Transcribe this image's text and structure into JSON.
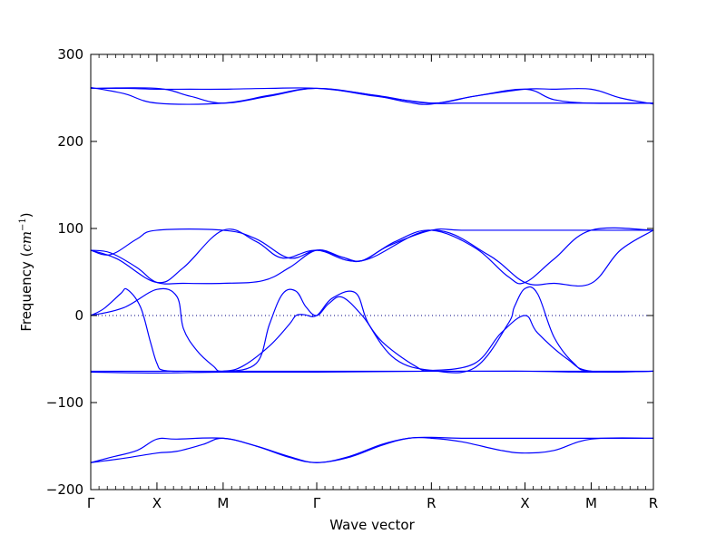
{
  "chart_data": {
    "type": "line",
    "xlabel": "Wave vector",
    "ylabel": "Frequency ($cm^{-1}$)",
    "ylabel_parts": {
      "text": "Frequency (",
      "math_base": "cm",
      "math_sup": "−1",
      "close": ")"
    },
    "ylim": [
      -200,
      300
    ],
    "yticks": [
      -200,
      -100,
      0,
      100,
      200,
      300
    ],
    "ytick_labels": [
      "−200",
      "−100",
      "0",
      "100",
      "200",
      "300"
    ],
    "xlim": [
      0,
      8.5
    ],
    "high_symmetry_points": [
      {
        "label": "Γ",
        "x": 0
      },
      {
        "label": "X",
        "x": 1
      },
      {
        "label": "M",
        "x": 2
      },
      {
        "label": "Γ",
        "x": 3.414
      },
      {
        "label": "R",
        "x": 5.146
      },
      {
        "label": "X",
        "x": 6.56
      },
      {
        "label": "M",
        "x": 7.56
      },
      {
        "label": "R",
        "x": 8.5
      }
    ],
    "zero_line": true,
    "line_color": "#0000ff",
    "zero_line_color": "#000080",
    "series": [
      {
        "values": [
          [
            0,
            -169
          ],
          [
            0.3,
            -163
          ],
          [
            0.7,
            -155
          ],
          [
            1,
            -142
          ],
          [
            1.3,
            -142
          ],
          [
            2,
            -141
          ],
          [
            2.5,
            -150
          ],
          [
            3,
            -162
          ],
          [
            3.414,
            -169
          ],
          [
            3.9,
            -162
          ],
          [
            4.4,
            -148
          ],
          [
            4.8,
            -141
          ],
          [
            5.146,
            -140
          ],
          [
            5.6,
            -141
          ],
          [
            6.56,
            -141
          ],
          [
            7.56,
            -141
          ],
          [
            8.5,
            -141
          ]
        ]
      },
      {
        "values": [
          [
            0,
            -169
          ],
          [
            0.5,
            -164
          ],
          [
            1,
            -158
          ],
          [
            1.3,
            -156
          ],
          [
            1.7,
            -148
          ],
          [
            2,
            -141
          ],
          [
            2.5,
            -150
          ],
          [
            3,
            -163
          ],
          [
            3.414,
            -169
          ],
          [
            3.9,
            -163
          ],
          [
            4.4,
            -149
          ],
          [
            4.8,
            -141
          ],
          [
            5.146,
            -141
          ],
          [
            5.6,
            -145
          ],
          [
            6.2,
            -155
          ],
          [
            6.56,
            -158
          ],
          [
            7,
            -155
          ],
          [
            7.56,
            -142
          ],
          [
            8.5,
            -141
          ]
        ]
      },
      {
        "values": [
          [
            0,
            -64
          ],
          [
            1,
            -64
          ],
          [
            2,
            -64
          ],
          [
            3.414,
            -64
          ],
          [
            5.146,
            -64
          ],
          [
            6.56,
            -64
          ],
          [
            7.56,
            -64
          ],
          [
            8.5,
            -64
          ]
        ]
      },
      {
        "values": [
          [
            0,
            -65
          ],
          [
            1,
            -66
          ],
          [
            2,
            -65
          ],
          [
            3.414,
            -65
          ],
          [
            5.146,
            -64
          ],
          [
            6.56,
            -64
          ],
          [
            7.56,
            -65
          ],
          [
            8.5,
            -64
          ]
        ]
      },
      {
        "values": [
          [
            0,
            0
          ],
          [
            0.2,
            8
          ],
          [
            0.45,
            25
          ],
          [
            0.55,
            30
          ],
          [
            0.75,
            10
          ],
          [
            0.9,
            -30
          ],
          [
            1.0,
            -55
          ],
          [
            1.1,
            -63
          ],
          [
            1.5,
            -64
          ],
          [
            2,
            -64
          ],
          [
            2.3,
            -58
          ],
          [
            2.7,
            -35
          ],
          [
            3.0,
            -10
          ],
          [
            3.1,
            0
          ],
          [
            3.22,
            1
          ],
          [
            3.414,
            0
          ],
          [
            3.65,
            20
          ],
          [
            4.0,
            26
          ],
          [
            4.2,
            -10
          ],
          [
            4.6,
            -50
          ],
          [
            5.146,
            -63
          ],
          [
            5.8,
            -60
          ],
          [
            6.3,
            -10
          ],
          [
            6.4,
            10
          ],
          [
            6.56,
            31
          ],
          [
            6.75,
            25
          ],
          [
            7.0,
            -25
          ],
          [
            7.3,
            -55
          ],
          [
            7.56,
            -64
          ],
          [
            8.5,
            -64
          ]
        ]
      },
      {
        "values": [
          [
            0,
            0
          ],
          [
            0.5,
            9
          ],
          [
            1,
            30
          ],
          [
            1.3,
            22
          ],
          [
            1.4,
            -15
          ],
          [
            1.6,
            -40
          ],
          [
            1.85,
            -58
          ],
          [
            2,
            -64
          ],
          [
            2.5,
            -55
          ],
          [
            2.7,
            -10
          ],
          [
            2.9,
            25
          ],
          [
            3.1,
            28
          ],
          [
            3.25,
            10
          ],
          [
            3.414,
            0
          ],
          [
            3.6,
            14
          ],
          [
            3.8,
            21
          ],
          [
            4.1,
            0
          ],
          [
            4.4,
            -30
          ],
          [
            4.9,
            -58
          ],
          [
            5.146,
            -63
          ],
          [
            5.8,
            -55
          ],
          [
            6.2,
            -20
          ],
          [
            6.56,
            0
          ],
          [
            6.75,
            -20
          ],
          [
            7.2,
            -50
          ],
          [
            7.56,
            -64
          ],
          [
            8.5,
            -64
          ]
        ]
      },
      {
        "values": [
          [
            0,
            75
          ],
          [
            0.3,
            72
          ],
          [
            0.7,
            55
          ],
          [
            1,
            38
          ],
          [
            1.4,
            37
          ],
          [
            2,
            37
          ],
          [
            2.6,
            40
          ],
          [
            3.0,
            55
          ],
          [
            3.414,
            75
          ],
          [
            3.8,
            67
          ],
          [
            4.1,
            63
          ],
          [
            4.5,
            80
          ],
          [
            5.146,
            98
          ],
          [
            5.6,
            98
          ],
          [
            6.56,
            98
          ],
          [
            7.56,
            98
          ],
          [
            8.5,
            98
          ]
        ]
      },
      {
        "values": [
          [
            0,
            75
          ],
          [
            0.3,
            70
          ],
          [
            0.7,
            88
          ],
          [
            1,
            98
          ],
          [
            2,
            98
          ],
          [
            2.5,
            88
          ],
          [
            3.0,
            66
          ],
          [
            3.414,
            75
          ],
          [
            3.8,
            67
          ],
          [
            4.1,
            63
          ],
          [
            4.6,
            85
          ],
          [
            5.146,
            98
          ],
          [
            5.8,
            78
          ],
          [
            6.3,
            45
          ],
          [
            6.56,
            38
          ],
          [
            7.0,
            65
          ],
          [
            7.56,
            98
          ],
          [
            8.5,
            98
          ]
        ]
      },
      {
        "values": [
          [
            0,
            75
          ],
          [
            0.4,
            65
          ],
          [
            1,
            38
          ],
          [
            1.4,
            55
          ],
          [
            2,
            98
          ],
          [
            2.5,
            85
          ],
          [
            2.9,
            66
          ],
          [
            3.414,
            75
          ],
          [
            4.1,
            63
          ],
          [
            5.146,
            98
          ],
          [
            6.0,
            70
          ],
          [
            6.56,
            38
          ],
          [
            7.0,
            37
          ],
          [
            7.56,
            37
          ],
          [
            8.0,
            75
          ],
          [
            8.5,
            98
          ]
        ]
      },
      {
        "values": [
          [
            0,
            261
          ],
          [
            0.5,
            261
          ],
          [
            1,
            260
          ],
          [
            1.5,
            260
          ],
          [
            2,
            260
          ],
          [
            2.7,
            261
          ],
          [
            3.414,
            261
          ],
          [
            4.2,
            254
          ],
          [
            4.8,
            245
          ],
          [
            5.146,
            243
          ],
          [
            5.8,
            252
          ],
          [
            6.56,
            260
          ],
          [
            7.0,
            260
          ],
          [
            7.56,
            260
          ],
          [
            8.0,
            250
          ],
          [
            8.5,
            243
          ]
        ]
      },
      {
        "values": [
          [
            0,
            261
          ],
          [
            1,
            261
          ],
          [
            1.5,
            252
          ],
          [
            2,
            244
          ],
          [
            2.7,
            252
          ],
          [
            3.414,
            261
          ],
          [
            4.3,
            253
          ],
          [
            5.146,
            244
          ],
          [
            5.8,
            252
          ],
          [
            6.56,
            260
          ],
          [
            7.0,
            248
          ],
          [
            7.56,
            244
          ],
          [
            8.5,
            244
          ]
        ]
      },
      {
        "values": [
          [
            0,
            262
          ],
          [
            0.5,
            255
          ],
          [
            1,
            244
          ],
          [
            2,
            244
          ],
          [
            2.7,
            253
          ],
          [
            3.414,
            261
          ],
          [
            4.3,
            252
          ],
          [
            5.146,
            244
          ],
          [
            5.6,
            244
          ],
          [
            6.56,
            244
          ],
          [
            7.56,
            244
          ],
          [
            8.5,
            244
          ]
        ]
      }
    ]
  }
}
